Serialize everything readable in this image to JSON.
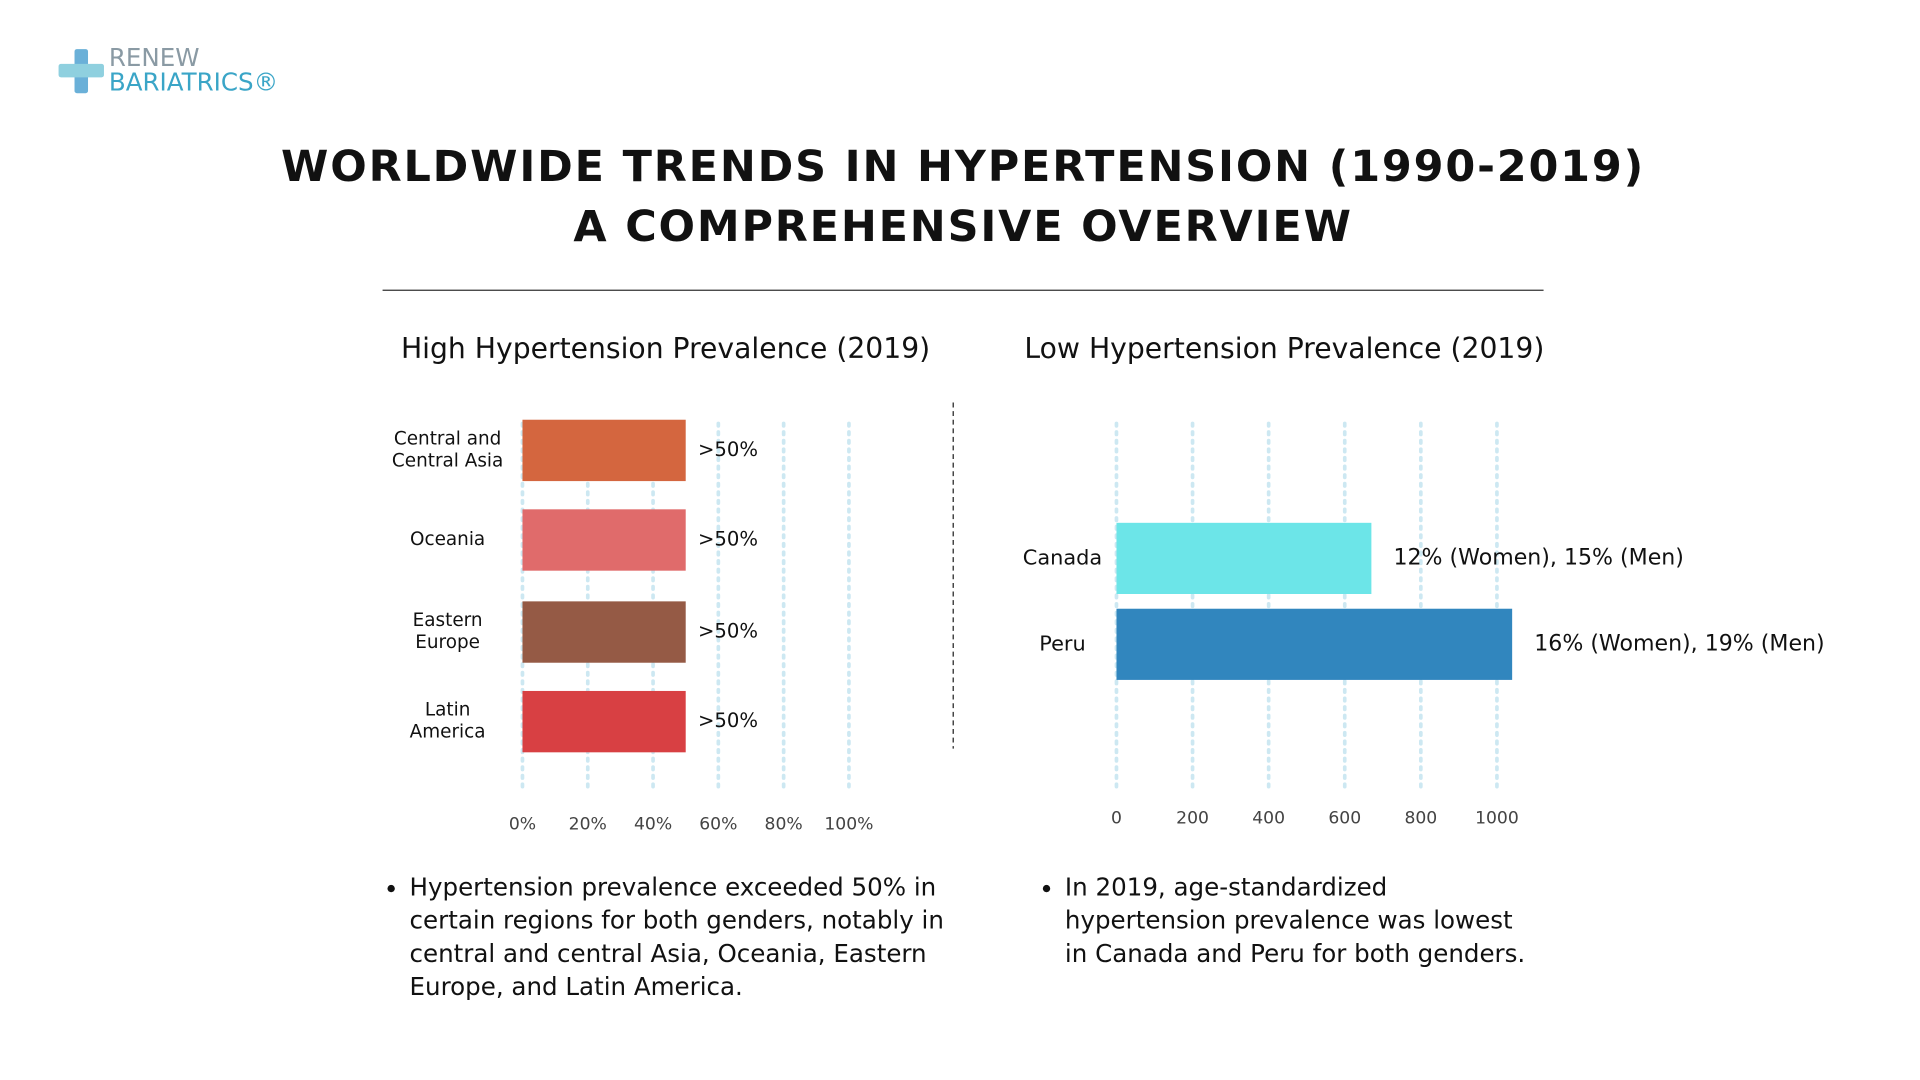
{
  "logo": {
    "line1": "RENEW",
    "line2": "BARIATRICS®"
  },
  "header": {
    "title_line1": "WORLDWIDE TRENDS IN HYPERTENSION (1990-2019)",
    "title_line2": "A COMPREHENSIVE OVERVIEW"
  },
  "chart_data": [
    {
      "type": "hbar",
      "title": "High Hypertension Prevalence (2019)",
      "categories": [
        "Central and\nCentral Asia",
        "Oceania",
        "Eastern\nEurope",
        "Latin\nAmerica"
      ],
      "values": [
        50,
        50,
        50,
        50
      ],
      "value_labels": [
        ">50%",
        ">50%",
        ">50%",
        ">50%"
      ],
      "colors": [
        "#d4663f",
        "#e06b6b",
        "#955a45",
        "#d84043"
      ],
      "xlim": [
        0,
        100
      ],
      "xticks": [
        {
          "value": 0,
          "label": "0%"
        },
        {
          "value": 20,
          "label": "20%"
        },
        {
          "value": 40,
          "label": "40%"
        },
        {
          "value": 60,
          "label": "60%"
        },
        {
          "value": 80,
          "label": "80%"
        },
        {
          "value": 100,
          "label": "100%"
        }
      ],
      "grid": true,
      "bullets": [
        [
          "Hypertension prevalence exceeded 50% in",
          "certain regions for both genders, notably in",
          "central and central Asia, Oceania, Eastern",
          "Europe, and Latin America."
        ]
      ]
    },
    {
      "type": "hbar",
      "title": "Low Hypertension Prevalence (2019)",
      "categories": [
        "Canada",
        "Peru"
      ],
      "values": [
        670,
        1040
      ],
      "annotations": [
        "12% (Women), 15% (Men)",
        "16% (Women), 19% (Men)"
      ],
      "colors": [
        "#6ce5e8",
        "#3186be"
      ],
      "xlim": [
        0,
        1000
      ],
      "xticks": [
        0,
        200,
        400,
        600,
        800,
        1000
      ],
      "grid": true,
      "bullets": [
        [
          "In 2019, age-standardized",
          "hypertension prevalence was lowest",
          "in Canada and Peru for both genders."
        ]
      ]
    }
  ]
}
